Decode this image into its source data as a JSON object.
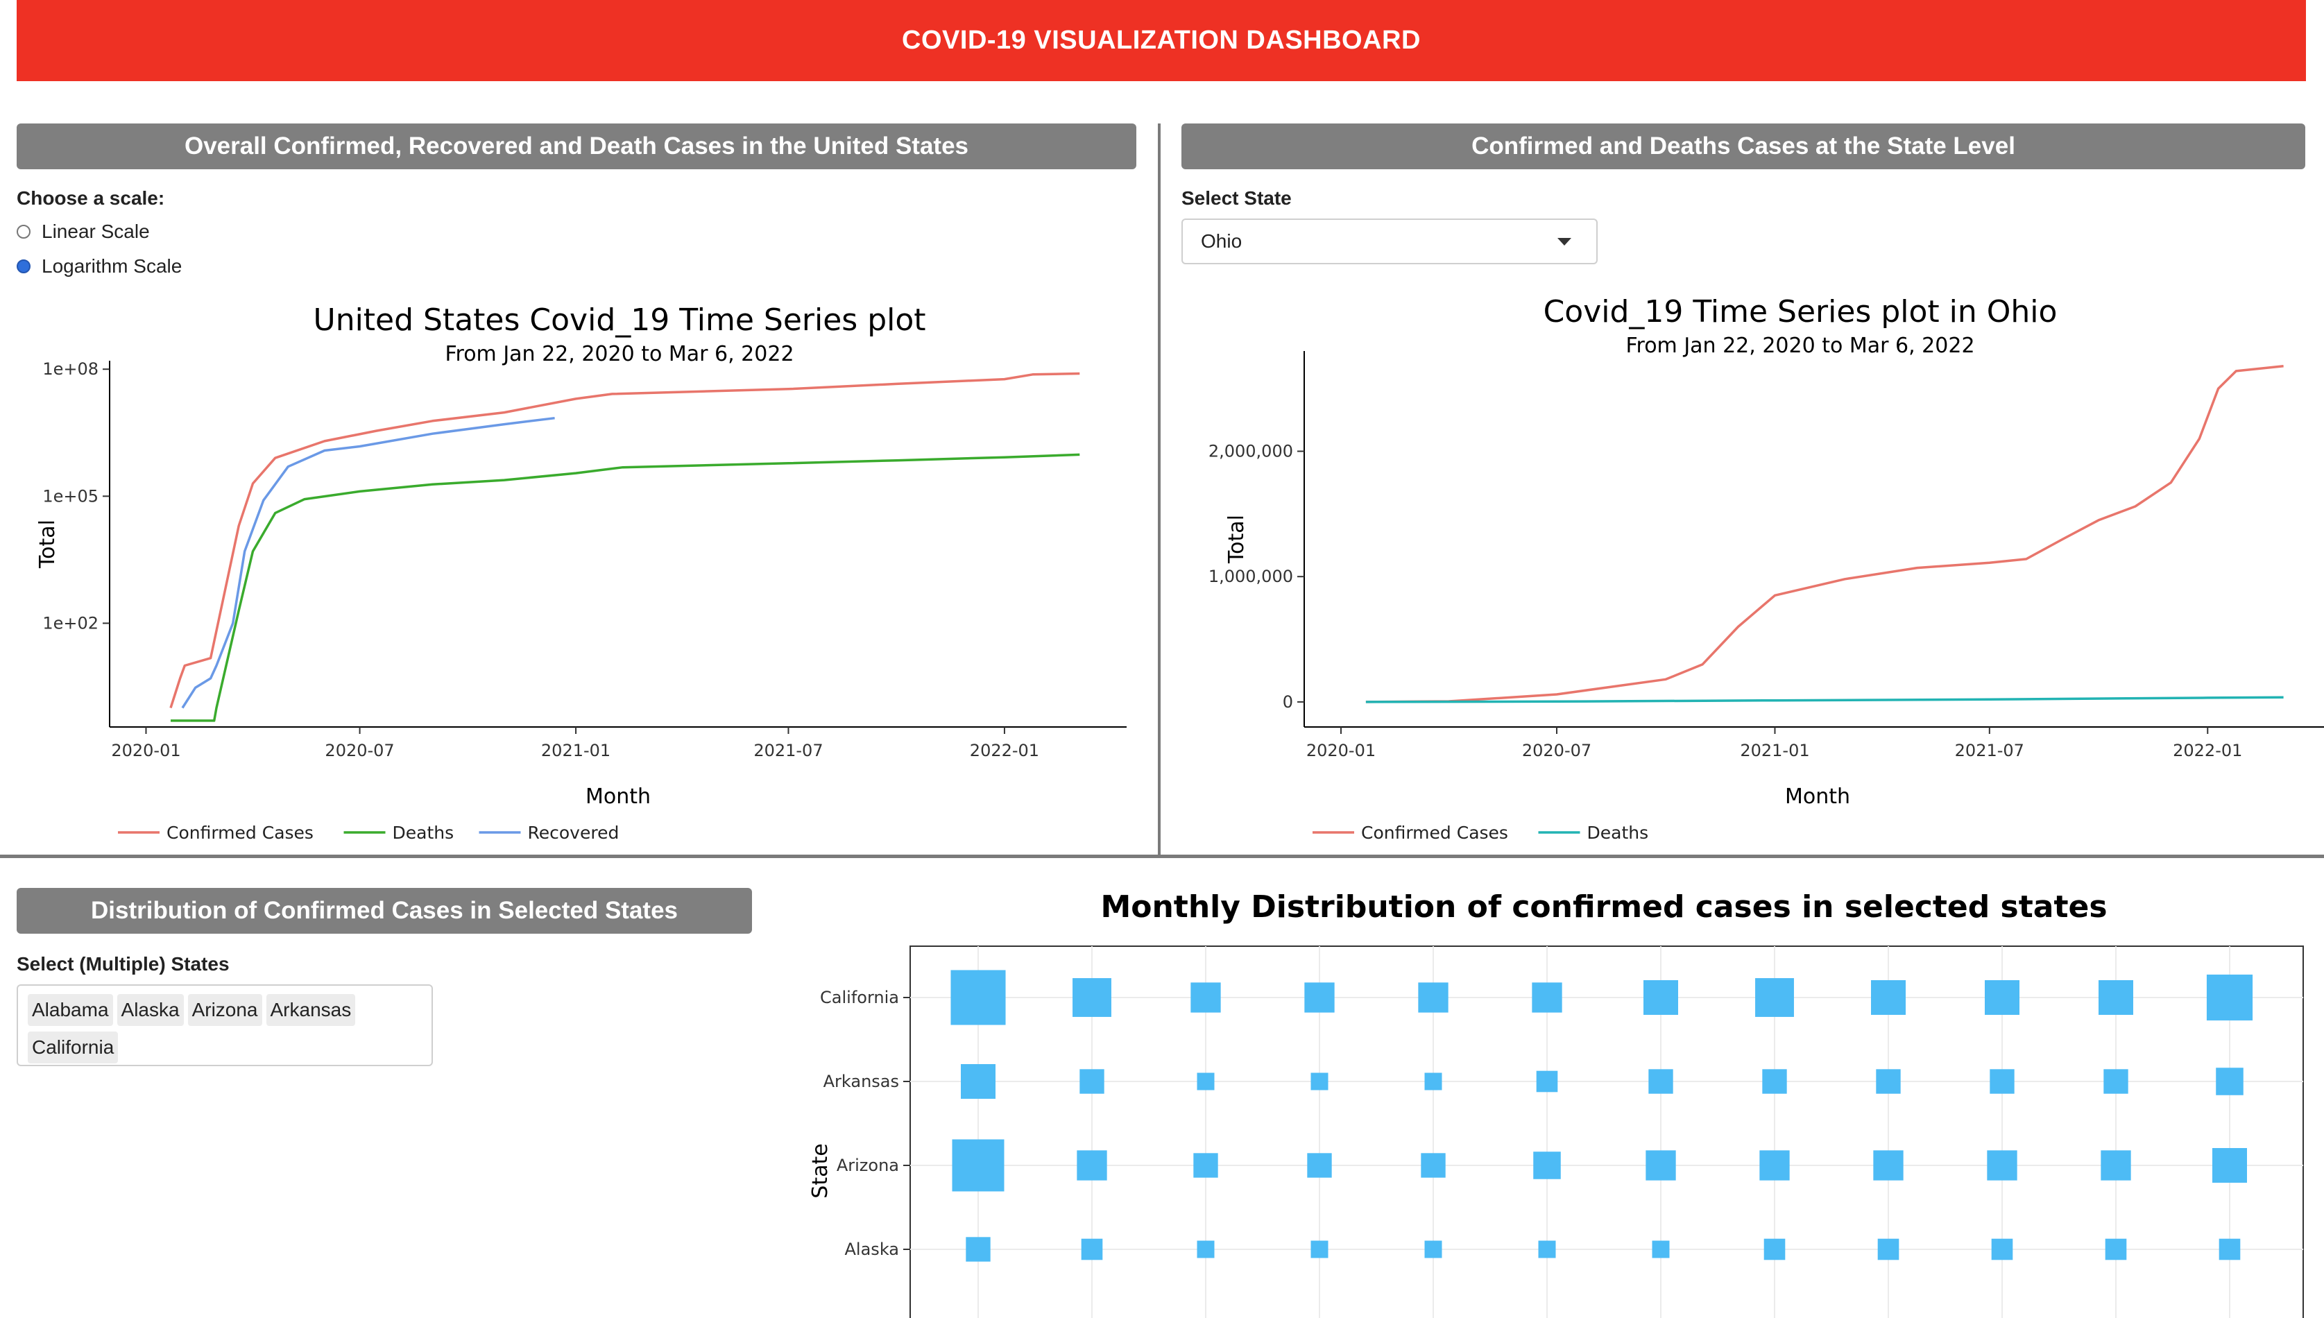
{
  "header": {
    "title": "COVID-19 VISUALIZATION DASHBOARD"
  },
  "panel_left": {
    "title": "Overall Confirmed, Recovered and Death Cases in the United States",
    "scale_prompt": "Choose a scale:",
    "scale_options": [
      {
        "label": "Linear Scale",
        "selected": false
      },
      {
        "label": "Logarithm Scale",
        "selected": true
      }
    ]
  },
  "panel_right": {
    "title": "Confirmed and Deaths Cases at the State Level",
    "select_label": "Select State",
    "selected_state": "Ohio"
  },
  "panel_bottom": {
    "title": "Distribution of Confirmed Cases in Selected States",
    "select_label": "Select (Multiple) States",
    "selected_states": [
      "Alabama",
      "Alaska",
      "Arizona",
      "Arkansas",
      "California"
    ]
  },
  "colors": {
    "header_bg": "#ee3124",
    "panel_header_bg": "#7f7f7f",
    "confirmed": "#e8756b",
    "deaths": "#3aab2d",
    "recovered": "#6a99e6",
    "ohio_deaths": "#22b3b3",
    "bubble": "#4dbbf5"
  },
  "chart_data": [
    {
      "type": "line",
      "title": "United States Covid_19 Time Series plot",
      "subtitle": "From Jan 22, 2020 to  Mar 6, 2022",
      "xlabel": "Month",
      "ylabel": "Total",
      "y_scale": "log",
      "x_ticks": [
        "2020-01",
        "2020-07",
        "2021-01",
        "2021-07",
        "2022-01"
      ],
      "y_ticks": [
        "1e+02",
        "1e+05",
        "1e+08"
      ],
      "legend_position": "bottom",
      "series": [
        {
          "name": "Confirmed Cases",
          "color": "#e8756b",
          "points": [
            [
              "2020-01-22",
              1
            ],
            [
              "2020-01-30",
              5
            ],
            [
              "2020-02-03",
              10
            ],
            [
              "2020-02-25",
              15
            ],
            [
              "2020-03-10",
              1000
            ],
            [
              "2020-03-20",
              20000
            ],
            [
              "2020-04-01",
              200000
            ],
            [
              "2020-04-20",
              800000
            ],
            [
              "2020-06-01",
              2000000
            ],
            [
              "2020-07-15",
              3500000
            ],
            [
              "2020-09-01",
              6000000
            ],
            [
              "2020-11-01",
              9500000
            ],
            [
              "2021-01-01",
              20000000
            ],
            [
              "2021-02-01",
              26000000
            ],
            [
              "2021-07-01",
              34000000
            ],
            [
              "2021-10-01",
              45000000
            ],
            [
              "2022-01-01",
              58000000
            ],
            [
              "2022-01-25",
              75000000
            ],
            [
              "2022-03-06",
              79000000
            ]
          ]
        },
        {
          "name": "Deaths",
          "color": "#3aab2d",
          "points": [
            [
              "2020-01-22",
              0.5
            ],
            [
              "2020-02-28",
              0.5
            ],
            [
              "2020-03-01",
              1
            ],
            [
              "2020-03-20",
              200
            ],
            [
              "2020-04-01",
              5000
            ],
            [
              "2020-04-20",
              40000
            ],
            [
              "2020-05-15",
              85000
            ],
            [
              "2020-07-01",
              130000
            ],
            [
              "2020-09-01",
              190000
            ],
            [
              "2020-11-01",
              240000
            ],
            [
              "2021-01-01",
              350000
            ],
            [
              "2021-02-10",
              480000
            ],
            [
              "2021-07-01",
              600000
            ],
            [
              "2021-10-01",
              700000
            ],
            [
              "2022-01-01",
              830000
            ],
            [
              "2022-03-06",
              960000
            ]
          ]
        },
        {
          "name": "Recovered",
          "color": "#6a99e6",
          "points": [
            [
              "2020-02-01",
              1
            ],
            [
              "2020-02-12",
              3
            ],
            [
              "2020-02-25",
              5
            ],
            [
              "2020-03-01",
              10
            ],
            [
              "2020-03-15",
              100
            ],
            [
              "2020-03-25",
              5000
            ],
            [
              "2020-04-10",
              80000
            ],
            [
              "2020-05-01",
              500000
            ],
            [
              "2020-06-01",
              1200000
            ],
            [
              "2020-07-01",
              1500000
            ],
            [
              "2020-09-01",
              3000000
            ],
            [
              "2020-11-01",
              5000000
            ],
            [
              "2020-12-14",
              7000000
            ]
          ]
        }
      ]
    },
    {
      "type": "line",
      "title": "Covid_19 Time Series plot in Ohio",
      "subtitle": "From Jan 22, 2020 to  Mar 6, 2022",
      "xlabel": "Month",
      "ylabel": "Total",
      "x_ticks": [
        "2020-01",
        "2020-07",
        "2021-01",
        "2021-07",
        "2022-01"
      ],
      "y_ticks": [
        "0",
        "1,000,000",
        "2,000,000"
      ],
      "legend_position": "bottom",
      "series": [
        {
          "name": "Confirmed Cases",
          "color": "#e8756b",
          "points": [
            [
              "2020-01-22",
              0
            ],
            [
              "2020-04-01",
              5000
            ],
            [
              "2020-07-01",
              60000
            ],
            [
              "2020-10-01",
              180000
            ],
            [
              "2020-11-01",
              300000
            ],
            [
              "2020-12-01",
              600000
            ],
            [
              "2021-01-01",
              850000
            ],
            [
              "2021-03-01",
              980000
            ],
            [
              "2021-05-01",
              1070000
            ],
            [
              "2021-07-01",
              1110000
            ],
            [
              "2021-08-01",
              1140000
            ],
            [
              "2021-09-01",
              1300000
            ],
            [
              "2021-10-01",
              1450000
            ],
            [
              "2021-11-01",
              1560000
            ],
            [
              "2021-12-01",
              1750000
            ],
            [
              "2021-12-25",
              2100000
            ],
            [
              "2022-01-10",
              2500000
            ],
            [
              "2022-01-25",
              2640000
            ],
            [
              "2022-03-06",
              2680000
            ]
          ]
        },
        {
          "name": "Deaths",
          "color": "#22b3b3",
          "points": [
            [
              "2020-01-22",
              0
            ],
            [
              "2020-07-01",
              3000
            ],
            [
              "2021-01-01",
              12000
            ],
            [
              "2021-07-01",
              20000
            ],
            [
              "2022-01-01",
              33000
            ],
            [
              "2022-03-06",
              37000
            ]
          ]
        }
      ]
    },
    {
      "type": "scatter",
      "title": "Monthly Distribution of confirmed cases in selected states",
      "ylabel": "State",
      "categories_y": [
        "California",
        "Arkansas",
        "Arizona",
        "Alaska"
      ],
      "months": 12,
      "point_size_values": {
        "California": [
          10,
          5,
          3,
          3,
          3,
          3,
          4,
          5,
          4,
          4,
          4,
          7
        ],
        "Arkansas": [
          4,
          2,
          1,
          1,
          1,
          1.5,
          2,
          2,
          2,
          2,
          2,
          2.5
        ],
        "Arizona": [
          9,
          3,
          2,
          2,
          2,
          2.5,
          3,
          3,
          3,
          3,
          3,
          4
        ],
        "Alaska": [
          2,
          1.5,
          1,
          1,
          1,
          1,
          1,
          1.5,
          1.5,
          1.5,
          1.5,
          1.5
        ]
      }
    }
  ]
}
